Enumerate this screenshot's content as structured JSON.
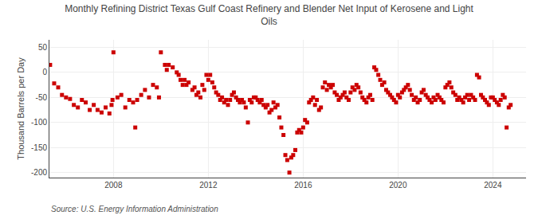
{
  "chart_data": {
    "type": "scatter",
    "title": "Monthly Refining District Texas Gulf Coast Refinery and Blender Net Input of Kerosene and Light\nOils",
    "ylabel": "Thousand Barrels per Day",
    "annotations": [
      "Source: U.S. Energy Information Administration"
    ],
    "color": "#cc0000",
    "marker": "square",
    "grid": true,
    "xlim": [
      2005.3,
      2025.4
    ],
    "xticks": [
      2008,
      2012,
      2016,
      2020,
      2024
    ],
    "ylim": [
      -210,
      65
    ],
    "yticks": [
      -200,
      -150,
      -100,
      -50,
      0,
      50
    ],
    "x": [
      2005.33,
      2005.5,
      2005.67,
      2005.83,
      2006.0,
      2006.17,
      2006.33,
      2006.5,
      2006.67,
      2006.83,
      2007.0,
      2007.17,
      2007.33,
      2007.5,
      2007.67,
      2007.83,
      2007.92,
      2007.96,
      2008.0,
      2008.17,
      2008.33,
      2008.5,
      2008.67,
      2008.83,
      2008.92,
      2009.0,
      2009.17,
      2009.33,
      2009.5,
      2009.67,
      2009.83,
      2009.92,
      2010.0,
      2010.17,
      2010.25,
      2010.33,
      2010.5,
      2010.67,
      2010.75,
      2010.83,
      2010.92,
      2011.0,
      2011.08,
      2011.17,
      2011.33,
      2011.42,
      2011.5,
      2011.58,
      2011.67,
      2011.75,
      2011.83,
      2011.92,
      2012.0,
      2012.08,
      2012.17,
      2012.25,
      2012.33,
      2012.42,
      2012.5,
      2012.58,
      2012.67,
      2012.75,
      2012.83,
      2012.92,
      2013.0,
      2013.08,
      2013.17,
      2013.25,
      2013.33,
      2013.42,
      2013.5,
      2013.58,
      2013.67,
      2013.75,
      2013.83,
      2013.92,
      2014.0,
      2014.08,
      2014.17,
      2014.25,
      2014.33,
      2014.42,
      2014.5,
      2014.58,
      2014.67,
      2014.75,
      2014.83,
      2014.92,
      2015.0,
      2015.08,
      2015.17,
      2015.25,
      2015.33,
      2015.42,
      2015.5,
      2015.58,
      2015.67,
      2015.75,
      2015.83,
      2015.92,
      2016.0,
      2016.08,
      2016.17,
      2016.25,
      2016.33,
      2016.42,
      2016.5,
      2016.58,
      2016.67,
      2016.75,
      2016.83,
      2016.92,
      2017.0,
      2017.08,
      2017.17,
      2017.25,
      2017.33,
      2017.42,
      2017.5,
      2017.58,
      2017.67,
      2017.75,
      2017.83,
      2017.92,
      2018.0,
      2018.08,
      2018.17,
      2018.25,
      2018.33,
      2018.42,
      2018.5,
      2018.58,
      2018.67,
      2018.75,
      2018.83,
      2018.92,
      2019.0,
      2019.08,
      2019.17,
      2019.25,
      2019.33,
      2019.42,
      2019.5,
      2019.58,
      2019.67,
      2019.75,
      2019.83,
      2019.92,
      2020.0,
      2020.08,
      2020.17,
      2020.25,
      2020.33,
      2020.42,
      2020.5,
      2020.58,
      2020.67,
      2020.75,
      2020.83,
      2020.92,
      2021.0,
      2021.08,
      2021.17,
      2021.25,
      2021.33,
      2021.42,
      2021.5,
      2021.58,
      2021.67,
      2021.75,
      2021.83,
      2021.92,
      2022.0,
      2022.08,
      2022.17,
      2022.25,
      2022.33,
      2022.42,
      2022.5,
      2022.58,
      2022.67,
      2022.75,
      2022.83,
      2022.92,
      2023.0,
      2023.08,
      2023.17,
      2023.25,
      2023.33,
      2023.42,
      2023.5,
      2023.58,
      2023.67,
      2023.75,
      2023.83,
      2023.92,
      2024.0,
      2024.08,
      2024.17,
      2024.25,
      2024.33,
      2024.42,
      2024.5,
      2024.58,
      2024.67,
      2024.75
    ],
    "values": [
      15,
      -22,
      -30,
      -45,
      -50,
      -53,
      -65,
      -70,
      -55,
      -60,
      -75,
      -65,
      -75,
      -80,
      -70,
      -82,
      -65,
      -55,
      40,
      -50,
      -45,
      -70,
      -55,
      -60,
      -110,
      -55,
      -45,
      -35,
      -50,
      -25,
      -30,
      -50,
      40,
      15,
      5,
      15,
      10,
      0,
      -5,
      -15,
      -25,
      -15,
      -25,
      -20,
      -35,
      -30,
      -45,
      -40,
      -50,
      -25,
      -35,
      -5,
      -15,
      -5,
      -20,
      -30,
      -40,
      -45,
      -55,
      -50,
      -60,
      -55,
      -65,
      -55,
      -45,
      -40,
      -50,
      -55,
      -60,
      -55,
      -60,
      -70,
      -100,
      -55,
      -60,
      -50,
      -50,
      -55,
      -60,
      -55,
      -65,
      -70,
      -65,
      -80,
      -75,
      -60,
      -70,
      -65,
      -90,
      -110,
      -125,
      -165,
      -175,
      -200,
      -170,
      -165,
      -155,
      -120,
      -115,
      -120,
      -110,
      -95,
      -100,
      -60,
      -55,
      -50,
      -65,
      -55,
      -75,
      -70,
      -30,
      -20,
      -35,
      -25,
      -30,
      -25,
      -40,
      -45,
      -55,
      -50,
      -45,
      -40,
      -50,
      -55,
      -40,
      -30,
      -35,
      -25,
      -30,
      -40,
      -50,
      -55,
      -60,
      -50,
      -45,
      -55,
      10,
      5,
      -5,
      -15,
      -25,
      -20,
      -35,
      -40,
      -45,
      -50,
      -55,
      -60,
      -45,
      -50,
      -40,
      -35,
      -30,
      -25,
      -35,
      -45,
      -55,
      -50,
      -60,
      -55,
      -40,
      -35,
      -45,
      -50,
      -55,
      -60,
      -50,
      -55,
      -45,
      -50,
      -55,
      -60,
      -30,
      -25,
      -20,
      -30,
      -40,
      -45,
      -55,
      -50,
      -55,
      -60,
      -50,
      -45,
      -55,
      -45,
      -50,
      -55,
      -5,
      -10,
      -45,
      -50,
      -55,
      -60,
      -65,
      -50,
      -50,
      -55,
      -60,
      -65,
      -55,
      -45,
      -50,
      -110,
      -70,
      -65
    ]
  }
}
